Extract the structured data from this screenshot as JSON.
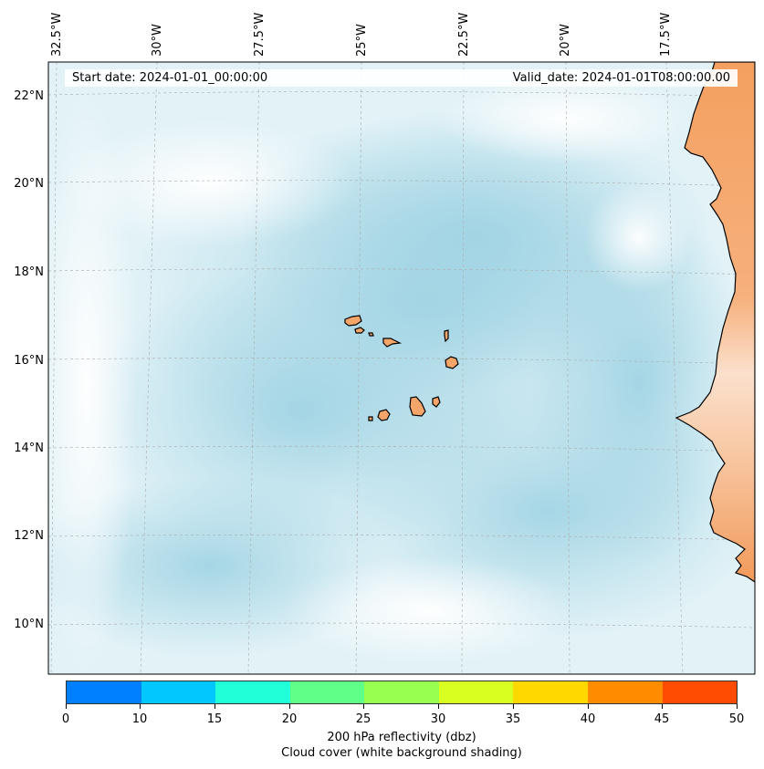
{
  "map": {
    "lon_labels": [
      "32.5°W",
      "30°W",
      "27.5°W",
      "25°W",
      "22.5°W",
      "20°W",
      "17.5°W"
    ],
    "lat_labels": [
      "22°N",
      "20°N",
      "18°N",
      "16°N",
      "14°N",
      "12°N",
      "10°N"
    ],
    "start_date": "Start date: 2024-01-01_00:00:00",
    "valid_date": "Valid_date: 2024-01-01T08:00:00.00"
  },
  "colorbar": {
    "ticks": [
      "0",
      "10",
      "15",
      "20",
      "25",
      "30",
      "35",
      "40",
      "45",
      "50"
    ],
    "colors": [
      "#0080ff",
      "#00c8ff",
      "#20ffd8",
      "#60ff88",
      "#98ff50",
      "#d8ff20",
      "#ffd800",
      "#ff8c00",
      "#ff4c00"
    ],
    "label_line1": "200 hPa reflectivity (dbz)",
    "label_line2": "Cloud cover (white background shading)"
  },
  "colors": {
    "ocean_cloud": "#b3dce8",
    "land": "#f4a66a",
    "land_light": "#f8cda8",
    "coastline": "#000000",
    "gridline": "#aaaaaa"
  }
}
